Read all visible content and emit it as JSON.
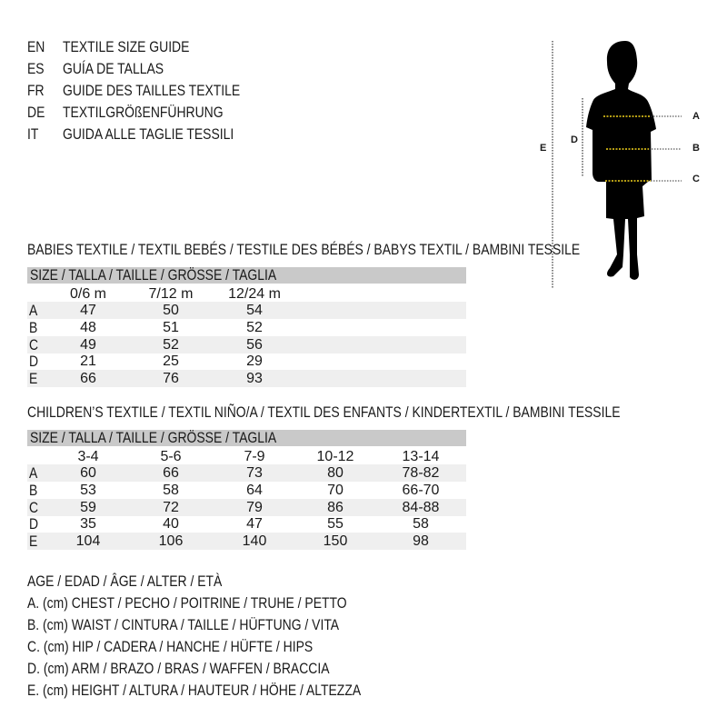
{
  "languages": [
    {
      "code": "EN",
      "title": "TEXTILE SIZE GUIDE"
    },
    {
      "code": "ES",
      "title": "GUÍA DE TALLAS"
    },
    {
      "code": "FR",
      "title": "GUIDE DES TAILLES TEXTILE"
    },
    {
      "code": "DE",
      "title": "TEXTILGRÖßENFÜHRUNG"
    },
    {
      "code": "IT",
      "title": "GUIDA ALLE TAGLIE TESSILI"
    }
  ],
  "figure": {
    "labels": {
      "a": "A",
      "b": "B",
      "c": "C",
      "d": "D",
      "e": "E"
    },
    "measure_line_color": "#f2d21b"
  },
  "babies": {
    "title": "BABIES TEXTILE / TEXTIL BEBÉS / TESTILE DES BÉBÉS / BABYS TEXTIL / BAMBINI TESSILE",
    "header": "SIZE / TALLA / TAILLE / GRÖSSE / TAGLIA",
    "columns": [
      "0/6 m",
      "7/12 m",
      "12/24 m"
    ],
    "rows": [
      {
        "label": "A",
        "values": [
          "47",
          "50",
          "54"
        ]
      },
      {
        "label": "B",
        "values": [
          "48",
          "51",
          "52"
        ]
      },
      {
        "label": "C",
        "values": [
          "49",
          "52",
          "56"
        ]
      },
      {
        "label": "D",
        "values": [
          "21",
          "25",
          "29"
        ]
      },
      {
        "label": "E",
        "values": [
          "66",
          "76",
          "93"
        ]
      }
    ]
  },
  "children": {
    "title": "CHILDREN’S TEXTILE / TEXTIL NIÑO/A / TEXTIL DES ENFANTS / KINDERTEXTIL / BAMBINI TESSILE",
    "header": "SIZE / TALLA / TAILLE / GRÖSSE / TAGLIA",
    "columns": [
      "3-4",
      "5-6",
      "7-9",
      "10-12",
      "13-14"
    ],
    "rows": [
      {
        "label": "A",
        "values": [
          "60",
          "66",
          "73",
          "80",
          "78-82"
        ]
      },
      {
        "label": "B",
        "values": [
          "53",
          "58",
          "64",
          "70",
          "66-70"
        ]
      },
      {
        "label": "C",
        "values": [
          "59",
          "72",
          "79",
          "86",
          "84-88"
        ]
      },
      {
        "label": "D",
        "values": [
          "35",
          "40",
          "47",
          "55",
          "58"
        ]
      },
      {
        "label": "E",
        "values": [
          "104",
          "106",
          "140",
          "150",
          "98"
        ]
      }
    ]
  },
  "legend": [
    "AGE / EDAD / ÂGE / ALTER / ETÀ",
    "A. (cm) CHEST / PECHO / POITRINE / TRUHE / PETTO",
    "B. (cm) WAIST / CINTURA / TAILLE / HÜFTUNG / VITA",
    "C. (cm) HIP / CADERA / HANCHE / HÜFTE / HIPS",
    "D. (cm) ARM / BRAZO / BRAS / WAFFEN / BRACCIA",
    "E. (cm) HEIGHT / ALTURA / HAUTEUR / HÖHE / ALTEZZA"
  ]
}
